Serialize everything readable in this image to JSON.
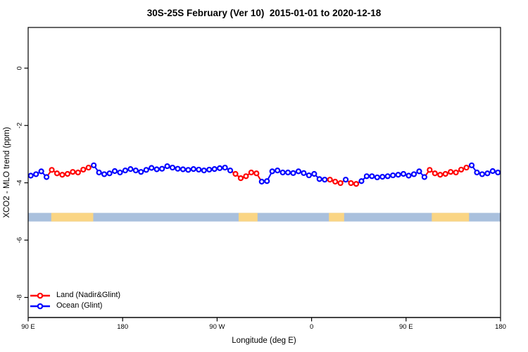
{
  "window": {
    "title": "30S-25S February (Ver 10)  2015-01-01 to 2020-12-18"
  },
  "colors": {
    "land_series": "#FF0000",
    "ocean_series": "#0000FF",
    "land_band": "#FAD584",
    "ocean_band": "#A9C0DD",
    "axis": "#000000"
  },
  "legend": {
    "items": [
      {
        "label": "Land (Nadir&Glint)",
        "color": "#FF0000"
      },
      {
        "label": "Ocean (Glint)",
        "color": "#0000FF"
      }
    ]
  },
  "chart_data": {
    "type": "line",
    "title": "30S-25S February (Ver 10)  2015-01-01 to 2020-12-18",
    "xlabel": "Longitude (deg E)",
    "ylabel": "XCO2 - MLO trend (ppm)",
    "xlim": [
      90,
      540
    ],
    "ylim": [
      1.42,
      -8.7
    ],
    "grid": false,
    "legend_position": "bottom-left",
    "x_ticks": [
      {
        "lon": 90,
        "label": "90 E"
      },
      {
        "lon": 180,
        "label": "180"
      },
      {
        "lon": 270,
        "label": "90 W"
      },
      {
        "lon": 360,
        "label": "0"
      },
      {
        "lon": 450,
        "label": "90 E"
      },
      {
        "lon": 540,
        "label": "180"
      }
    ],
    "y_ticks": [
      {
        "v": 0,
        "label": "0"
      },
      {
        "v": -2,
        "label": "-2"
      },
      {
        "v": -4,
        "label": "-4"
      },
      {
        "v": -6,
        "label": "-6"
      },
      {
        "v": -8,
        "label": "-8"
      }
    ],
    "series_meta": [
      {
        "key": "L",
        "name": "Land (Nadir&Glint)",
        "color": "#FF0000",
        "marker": "open-circle"
      },
      {
        "key": "O",
        "name": "Ocean (Glint)",
        "color": "#0000FF",
        "marker": "open-circle"
      }
    ],
    "surface_band": {
      "value_top": -5.05,
      "value_bottom": -5.35,
      "ocean_color": "#A9C0DD",
      "land_color": "#FAD584",
      "ocean_range": [
        90,
        540
      ],
      "land_segments": [
        [
          112,
          152
        ],
        [
          290.5,
          308.5
        ],
        [
          376.5,
          391
        ],
        [
          474.5,
          510
        ]
      ]
    },
    "points": [
      {
        "lon": 92.5,
        "v": -3.75,
        "s": "O"
      },
      {
        "lon": 97.5,
        "v": -3.7,
        "s": "O"
      },
      {
        "lon": 102.5,
        "v": -3.6,
        "s": "O"
      },
      {
        "lon": 107.5,
        "v": -3.8,
        "s": "O"
      },
      {
        "lon": 112.5,
        "v": -3.55,
        "s": "L"
      },
      {
        "lon": 117.5,
        "v": -3.67,
        "s": "L"
      },
      {
        "lon": 122.5,
        "v": -3.72,
        "s": "L"
      },
      {
        "lon": 127.5,
        "v": -3.69,
        "s": "L"
      },
      {
        "lon": 132.5,
        "v": -3.62,
        "s": "L"
      },
      {
        "lon": 137.5,
        "v": -3.64,
        "s": "L"
      },
      {
        "lon": 142.5,
        "v": -3.54,
        "s": "L"
      },
      {
        "lon": 147.5,
        "v": -3.47,
        "s": "L"
      },
      {
        "lon": 152.5,
        "v": -3.39,
        "s": "O"
      },
      {
        "lon": 157.5,
        "v": -3.64,
        "s": "O"
      },
      {
        "lon": 162.5,
        "v": -3.7,
        "s": "O"
      },
      {
        "lon": 167.5,
        "v": -3.67,
        "s": "O"
      },
      {
        "lon": 172.5,
        "v": -3.59,
        "s": "O"
      },
      {
        "lon": 177.5,
        "v": -3.64,
        "s": "O"
      },
      {
        "lon": 182.5,
        "v": -3.57,
        "s": "O"
      },
      {
        "lon": 187.5,
        "v": -3.52,
        "s": "O"
      },
      {
        "lon": 192.5,
        "v": -3.57,
        "s": "O"
      },
      {
        "lon": 197.5,
        "v": -3.62,
        "s": "O"
      },
      {
        "lon": 202.5,
        "v": -3.55,
        "s": "O"
      },
      {
        "lon": 207.5,
        "v": -3.48,
        "s": "O"
      },
      {
        "lon": 212.5,
        "v": -3.53,
        "s": "O"
      },
      {
        "lon": 217.5,
        "v": -3.51,
        "s": "O"
      },
      {
        "lon": 222.5,
        "v": -3.42,
        "s": "O"
      },
      {
        "lon": 227.5,
        "v": -3.47,
        "s": "O"
      },
      {
        "lon": 232.5,
        "v": -3.51,
        "s": "O"
      },
      {
        "lon": 237.5,
        "v": -3.53,
        "s": "O"
      },
      {
        "lon": 242.5,
        "v": -3.55,
        "s": "O"
      },
      {
        "lon": 247.5,
        "v": -3.52,
        "s": "O"
      },
      {
        "lon": 252.5,
        "v": -3.54,
        "s": "O"
      },
      {
        "lon": 257.5,
        "v": -3.57,
        "s": "O"
      },
      {
        "lon": 262.5,
        "v": -3.54,
        "s": "O"
      },
      {
        "lon": 267.5,
        "v": -3.52,
        "s": "O"
      },
      {
        "lon": 272.5,
        "v": -3.49,
        "s": "O"
      },
      {
        "lon": 277.5,
        "v": -3.47,
        "s": "O"
      },
      {
        "lon": 282.5,
        "v": -3.57,
        "s": "O"
      },
      {
        "lon": 287.5,
        "v": -3.69,
        "s": "L"
      },
      {
        "lon": 292.5,
        "v": -3.84,
        "s": "L"
      },
      {
        "lon": 297.5,
        "v": -3.77,
        "s": "L"
      },
      {
        "lon": 302.5,
        "v": -3.64,
        "s": "L"
      },
      {
        "lon": 307.5,
        "v": -3.67,
        "s": "L"
      },
      {
        "lon": 312.5,
        "v": -3.96,
        "s": "O"
      },
      {
        "lon": 317.5,
        "v": -3.94,
        "s": "O"
      },
      {
        "lon": 322.5,
        "v": -3.6,
        "s": "O"
      },
      {
        "lon": 327.5,
        "v": -3.57,
        "s": "O"
      },
      {
        "lon": 332.5,
        "v": -3.64,
        "s": "O"
      },
      {
        "lon": 337.5,
        "v": -3.64,
        "s": "O"
      },
      {
        "lon": 342.5,
        "v": -3.66,
        "s": "O"
      },
      {
        "lon": 347.5,
        "v": -3.6,
        "s": "O"
      },
      {
        "lon": 352.5,
        "v": -3.66,
        "s": "O"
      },
      {
        "lon": 357.5,
        "v": -3.74,
        "s": "O"
      },
      {
        "lon": 362.5,
        "v": -3.69,
        "s": "O"
      },
      {
        "lon": 367.5,
        "v": -3.87,
        "s": "O"
      },
      {
        "lon": 372.5,
        "v": -3.89,
        "s": "O"
      },
      {
        "lon": 377.5,
        "v": -3.89,
        "s": "L"
      },
      {
        "lon": 382.5,
        "v": -3.96,
        "s": "L"
      },
      {
        "lon": 387.5,
        "v": -4.01,
        "s": "L"
      },
      {
        "lon": 392.5,
        "v": -3.89,
        "s": "O"
      },
      {
        "lon": 397.5,
        "v": -4.01,
        "s": "L"
      },
      {
        "lon": 402.5,
        "v": -4.04,
        "s": "L"
      },
      {
        "lon": 407.5,
        "v": -3.94,
        "s": "O"
      },
      {
        "lon": 412.5,
        "v": -3.77,
        "s": "O"
      },
      {
        "lon": 417.5,
        "v": -3.77,
        "s": "O"
      },
      {
        "lon": 422.5,
        "v": -3.81,
        "s": "O"
      },
      {
        "lon": 427.5,
        "v": -3.79,
        "s": "O"
      },
      {
        "lon": 432.5,
        "v": -3.77,
        "s": "O"
      },
      {
        "lon": 437.5,
        "v": -3.74,
        "s": "O"
      },
      {
        "lon": 442.5,
        "v": -3.72,
        "s": "O"
      },
      {
        "lon": 447.5,
        "v": -3.69,
        "s": "O"
      },
      {
        "lon": 452.5,
        "v": -3.75,
        "s": "O"
      },
      {
        "lon": 457.5,
        "v": -3.7,
        "s": "O"
      },
      {
        "lon": 462.5,
        "v": -3.6,
        "s": "O"
      },
      {
        "lon": 467.5,
        "v": -3.8,
        "s": "O"
      },
      {
        "lon": 472.5,
        "v": -3.55,
        "s": "L"
      },
      {
        "lon": 477.5,
        "v": -3.67,
        "s": "L"
      },
      {
        "lon": 482.5,
        "v": -3.72,
        "s": "L"
      },
      {
        "lon": 487.5,
        "v": -3.69,
        "s": "L"
      },
      {
        "lon": 492.5,
        "v": -3.62,
        "s": "L"
      },
      {
        "lon": 497.5,
        "v": -3.64,
        "s": "L"
      },
      {
        "lon": 502.5,
        "v": -3.54,
        "s": "L"
      },
      {
        "lon": 507.5,
        "v": -3.47,
        "s": "L"
      },
      {
        "lon": 512.5,
        "v": -3.39,
        "s": "O"
      },
      {
        "lon": 517.5,
        "v": -3.64,
        "s": "O"
      },
      {
        "lon": 522.5,
        "v": -3.7,
        "s": "O"
      },
      {
        "lon": 527.5,
        "v": -3.67,
        "s": "O"
      },
      {
        "lon": 532.5,
        "v": -3.59,
        "s": "O"
      },
      {
        "lon": 537.5,
        "v": -3.64,
        "s": "O"
      }
    ]
  }
}
